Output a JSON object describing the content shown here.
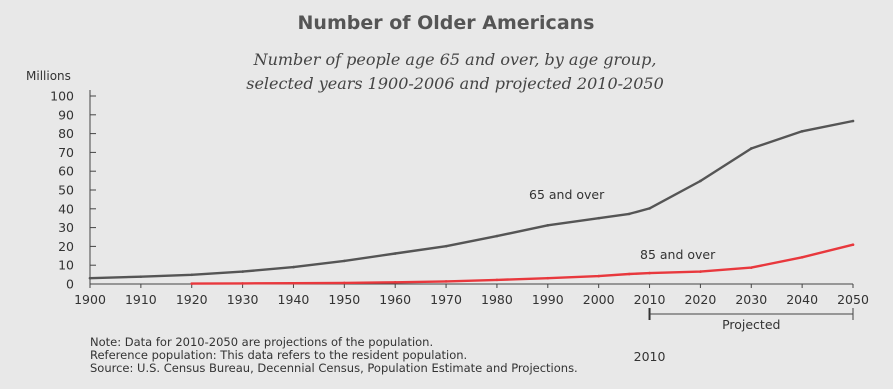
{
  "chart_data": {
    "type": "line",
    "title": "Number of Older Americans",
    "subtitle": [
      "Number of people age 65 and over, by age group,",
      "selected years 1900-2006 and projected 2010-2050"
    ],
    "ylabel": "Millions",
    "xlabel": "",
    "xlim": [
      1900,
      2050
    ],
    "ylim": [
      0,
      100
    ],
    "x_ticks": [
      1900,
      1910,
      1920,
      1930,
      1940,
      1950,
      1960,
      1970,
      1980,
      1990,
      2000,
      2010,
      2020,
      2030,
      2040,
      2050
    ],
    "y_ticks": [
      0,
      10,
      20,
      30,
      40,
      50,
      60,
      70,
      80,
      90,
      100
    ],
    "grid": false,
    "series": [
      {
        "name": "65 and over",
        "color": "#555555",
        "x": [
          1900,
          1910,
          1920,
          1930,
          1940,
          1950,
          1960,
          1970,
          1980,
          1990,
          2000,
          2006,
          2010,
          2020,
          2030,
          2040,
          2050
        ],
        "y": [
          3.1,
          3.9,
          4.9,
          6.6,
          9.0,
          12.3,
          16.2,
          20.1,
          25.5,
          31.2,
          35.0,
          37.3,
          40.2,
          54.8,
          72.1,
          81.2,
          86.7
        ]
      },
      {
        "name": "85 and over",
        "color": "#e8383d",
        "x": [
          1920,
          1930,
          1940,
          1950,
          1960,
          1970,
          1980,
          1990,
          2000,
          2006,
          2010,
          2020,
          2030,
          2040,
          2050
        ],
        "y": [
          0.2,
          0.3,
          0.4,
          0.6,
          0.9,
          1.4,
          2.2,
          3.1,
          4.2,
          5.3,
          5.8,
          6.6,
          8.7,
          14.2,
          20.9
        ]
      }
    ],
    "projection_marker": {
      "year_label": "2010",
      "range_label": "Projected",
      "start": 2010,
      "end": 2050
    },
    "notes": [
      "Note: Data for 2010-2050 are projections of the population.",
      "Reference population: This data refers to the resident population.",
      "Source: U.S. Census Bureau, Decennial Census, Population Estimate and Projections."
    ]
  }
}
